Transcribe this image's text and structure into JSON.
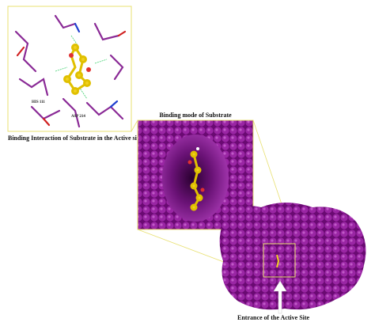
{
  "panels": {
    "interaction": {
      "caption": "Binding Interaction of Substrate in the Active site",
      "residues": [
        "HIS 111",
        "ASP 214"
      ]
    },
    "binding_mode": {
      "title": "Binding mode of Substrate"
    },
    "protein": {
      "caption": "Entrance of the Active Site"
    }
  }
}
